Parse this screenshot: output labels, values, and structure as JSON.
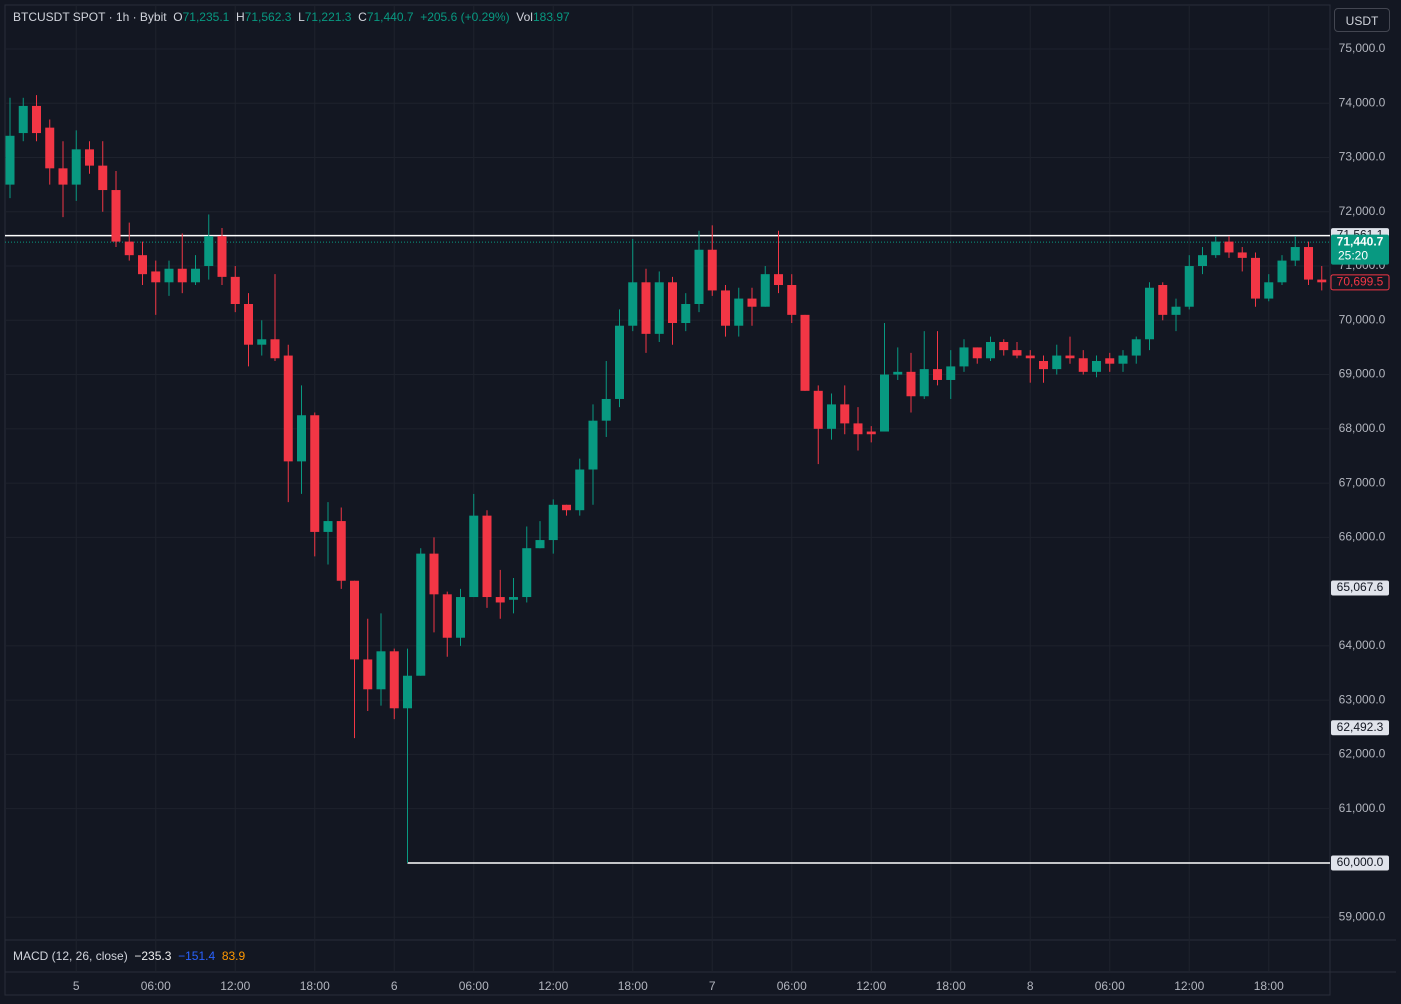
{
  "toolbar": {
    "symbol": "BTCUSDT SPOT · 1h · Bybit",
    "o_label": "O",
    "o": "71,235.1",
    "h_label": "H",
    "h": "71,562.3",
    "l_label": "L",
    "l": "71,221.3",
    "c_label": "C",
    "c": "71,440.7",
    "change": "+205.6 (+0.29%)",
    "vol_label": "Vol",
    "vol": "183.97",
    "currency": "USDT"
  },
  "indicator": {
    "name": "MACD (12, 26, close)",
    "macd": "−235.3",
    "signal": "−151.4",
    "histogram": "83.9"
  },
  "chart_data": {
    "type": "candlestick",
    "up_color": "#089981",
    "down_color": "#f23645",
    "grid": true,
    "categories": [
      null,
      null,
      null,
      null,
      null,
      "5",
      null,
      null,
      null,
      null,
      null,
      "06:00",
      null,
      null,
      null,
      null,
      null,
      "12:00",
      null,
      null,
      null,
      null,
      null,
      "18:00",
      null,
      null,
      null,
      null,
      null,
      "6",
      null,
      null,
      null,
      null,
      null,
      "06:00",
      null,
      null,
      null,
      null,
      null,
      "12:00",
      null,
      null,
      null,
      null,
      null,
      "18:00",
      null,
      null,
      null,
      null,
      null,
      "7",
      null,
      null,
      null,
      null,
      null,
      "06:00",
      null,
      null,
      null,
      null,
      null,
      "12:00",
      null,
      null,
      null,
      null,
      null,
      "18:00",
      null,
      null,
      null,
      null,
      null,
      "8",
      null,
      null,
      null,
      null,
      null,
      "06:00",
      null,
      null,
      null,
      null,
      null,
      "12:00",
      null,
      null,
      null,
      null,
      null,
      "18:00",
      null,
      null,
      null,
      null
    ],
    "open": [
      72500,
      73450,
      73950,
      73550,
      72800,
      72500,
      73150,
      72850,
      72400,
      71450,
      71200,
      70900,
      70700,
      70950,
      70700,
      71000,
      71550,
      70800,
      70300,
      69550,
      69650,
      69350,
      67400,
      68250,
      66100,
      66300,
      65200,
      63750,
      63200,
      63900,
      62850,
      63450,
      65700,
      64950,
      64150,
      64900,
      66400,
      64900,
      64850,
      64900,
      65800,
      65950,
      66600,
      66500,
      67250,
      68150,
      68550,
      69900,
      70700,
      69750,
      70700,
      69950,
      70300,
      71300,
      70550,
      69900,
      70400,
      70250,
      70850,
      70650,
      70100,
      68700,
      68000,
      68450,
      68100,
      67950,
      67950,
      69000,
      69050,
      68600,
      69100,
      68900,
      69150,
      69500,
      69300,
      69600,
      69450,
      69350,
      69250,
      69100,
      69350,
      69300,
      69050,
      69300,
      69200,
      69350,
      69650,
      70650,
      70100,
      70250,
      71000,
      71200,
      71450,
      71250,
      71150,
      70400,
      70700,
      71100,
      71350,
      70750
    ],
    "high": [
      74100,
      74100,
      74150,
      73700,
      73300,
      73500,
      73300,
      73300,
      72750,
      71800,
      71450,
      71100,
      71100,
      71600,
      71200,
      71950,
      71700,
      71000,
      70500,
      70000,
      70850,
      69550,
      68800,
      68300,
      66650,
      66550,
      65200,
      64500,
      64600,
      63950,
      63950,
      65800,
      66000,
      65000,
      65050,
      66800,
      66500,
      65400,
      65250,
      66200,
      66300,
      66700,
      66600,
      67450,
      68450,
      69250,
      70200,
      71500,
      70950,
      70900,
      70800,
      70500,
      71650,
      71750,
      70650,
      70600,
      70600,
      71000,
      71650,
      70850,
      70100,
      68800,
      68650,
      68800,
      68400,
      68050,
      69950,
      69500,
      69400,
      69800,
      69800,
      69450,
      69650,
      69500,
      69700,
      69650,
      69600,
      69450,
      69350,
      69550,
      69700,
      69450,
      69350,
      69400,
      69450,
      69700,
      70700,
      70700,
      70400,
      71200,
      71350,
      71550,
      71550,
      71350,
      71250,
      70850,
      71200,
      71550,
      71450,
      71000
    ],
    "low": [
      72250,
      73300,
      73300,
      72500,
      71900,
      72200,
      72700,
      72000,
      71350,
      71100,
      70650,
      70100,
      70450,
      70500,
      70650,
      70750,
      70650,
      70150,
      69150,
      69350,
      69250,
      66650,
      66800,
      65650,
      65500,
      65050,
      62300,
      62800,
      62900,
      62650,
      60000,
      63450,
      64250,
      63800,
      64000,
      64900,
      64700,
      64500,
      64600,
      64800,
      65800,
      65700,
      66400,
      66400,
      66600,
      67850,
      68400,
      69800,
      69400,
      69600,
      69550,
      69800,
      70150,
      70450,
      69700,
      69700,
      69900,
      70250,
      70500,
      69950,
      68700,
      67350,
      67800,
      67900,
      67600,
      67750,
      67950,
      68900,
      68300,
      68550,
      68800,
      68550,
      69050,
      69200,
      69250,
      69350,
      69300,
      68850,
      68850,
      69000,
      69200,
      69000,
      68950,
      69050,
      69050,
      69200,
      69450,
      70000,
      69800,
      70200,
      70850,
      71150,
      71150,
      70900,
      70250,
      70350,
      70650,
      71000,
      70650,
      70550
    ],
    "close": [
      73400,
      73950,
      73450,
      72800,
      72500,
      73150,
      72850,
      72400,
      71450,
      71200,
      70850,
      70700,
      70950,
      70700,
      70950,
      71550,
      70800,
      70300,
      69550,
      69650,
      69300,
      67400,
      68250,
      66100,
      66300,
      65200,
      63750,
      63200,
      63900,
      62850,
      63450,
      65700,
      64950,
      64150,
      64900,
      66400,
      64900,
      64800,
      64900,
      65800,
      65950,
      66600,
      66500,
      67250,
      68150,
      68550,
      69900,
      70700,
      69750,
      70700,
      69950,
      70300,
      71300,
      70550,
      69900,
      70400,
      70250,
      70850,
      70650,
      70100,
      68700,
      68000,
      68450,
      68100,
      67900,
      67900,
      69000,
      69050,
      68600,
      69100,
      68900,
      69150,
      69500,
      69300,
      69600,
      69450,
      69350,
      69300,
      69100,
      69350,
      69300,
      69050,
      69250,
      69200,
      69350,
      69650,
      70600,
      70100,
      70250,
      71000,
      71200,
      71450,
      71250,
      71150,
      70400,
      70700,
      71100,
      71350,
      70750,
      70700
    ],
    "ylim": [
      58580,
      75810
    ],
    "yticks": [
      {
        "value": 59000,
        "label": "59,000.0"
      },
      {
        "value": 61000,
        "label": "61,000.0"
      },
      {
        "value": 62000,
        "label": "62,000.0"
      },
      {
        "value": 63000,
        "label": "63,000.0"
      },
      {
        "value": 64000,
        "label": "64,000.0"
      },
      {
        "value": 66000,
        "label": "66,000.0"
      },
      {
        "value": 67000,
        "label": "67,000.0"
      },
      {
        "value": 68000,
        "label": "68,000.0"
      },
      {
        "value": 69000,
        "label": "69,000.0"
      },
      {
        "value": 70000,
        "label": "70,000.0"
      },
      {
        "value": 71000,
        "label": "71,000.0"
      },
      {
        "value": 72000,
        "label": "72,000.0"
      },
      {
        "value": 73000,
        "label": "73,000.0"
      },
      {
        "value": 74000,
        "label": "74,000.0"
      },
      {
        "value": 75000,
        "label": "75,000.0"
      }
    ],
    "price_lines": [
      {
        "value": 71561.1,
        "label": "71,561.1",
        "line": "solid",
        "box": "light"
      },
      {
        "value": 71440.7,
        "label": "71,440.7",
        "countdown": "25:20",
        "line": "dotted",
        "box": "green"
      },
      {
        "value": 70699.5,
        "label": "70,699.5",
        "line": "none",
        "box": "red-outline"
      },
      {
        "value": 65067.6,
        "label": "65,067.6",
        "line": "none",
        "box": "light"
      },
      {
        "value": 62492.3,
        "label": "62,492.3",
        "line": "none",
        "box": "light"
      },
      {
        "value": 60000,
        "label": "60,000.0",
        "line": "from-low",
        "box": "light"
      }
    ]
  }
}
